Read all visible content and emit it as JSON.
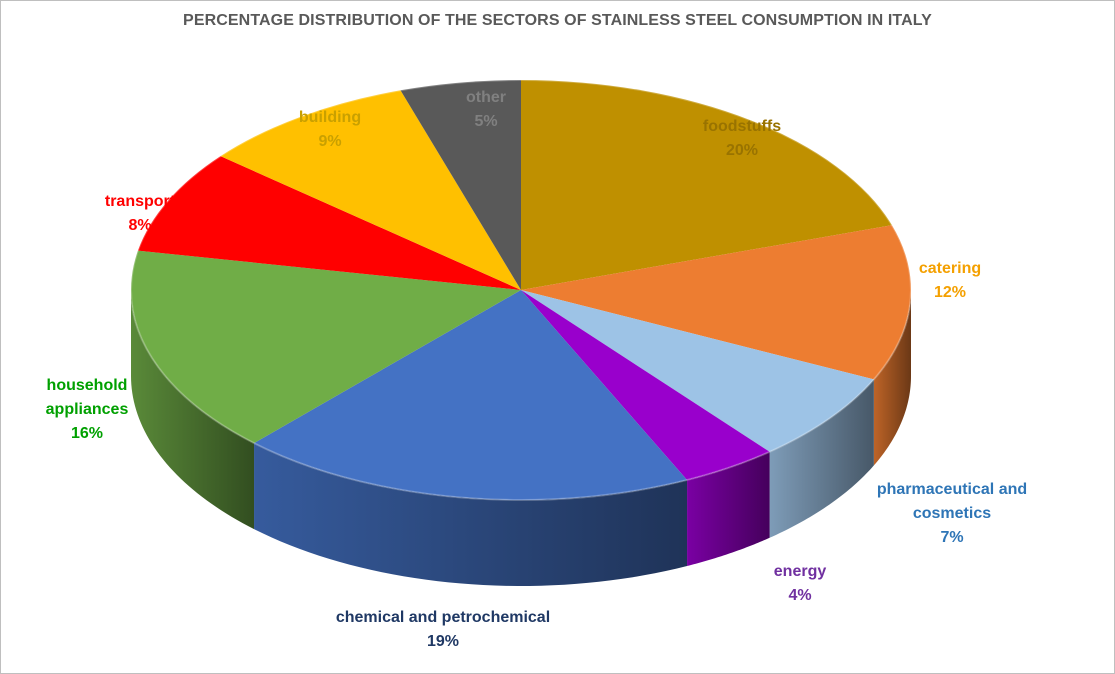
{
  "chart_data": {
    "type": "pie",
    "title": "PERCENTAGE DISTRIBUTION OF THE SECTORS OF STAINLESS STEEL CONSUMPTION IN ITALY",
    "slices": [
      {
        "name": "foodstuffs",
        "value": 20,
        "label_lines": [
          "foodstuffs",
          "20%"
        ],
        "color": "#BF9000",
        "label_color": "#997300"
      },
      {
        "name": "catering",
        "value": 12,
        "label_lines": [
          "catering",
          "12%"
        ],
        "color": "#ED7D31",
        "label_color": "#F4A000"
      },
      {
        "name": "pharmaceutical and cosmetics",
        "value": 7,
        "label_lines": [
          "pharmaceutical and",
          "cosmetics",
          "7%"
        ],
        "color": "#9DC3E6",
        "label_color": "#2E75B6"
      },
      {
        "name": "energy",
        "value": 4,
        "label_lines": [
          "energy",
          "4%"
        ],
        "color": "#9900CC",
        "label_color": "#7030A0"
      },
      {
        "name": "chemical and petrochemical",
        "value": 19,
        "label_lines": [
          "chemical and petrochemical",
          "19%"
        ],
        "color": "#4472C4",
        "label_color": "#1F3864"
      },
      {
        "name": "household appliances",
        "value": 16,
        "label_lines": [
          "household",
          "appliances",
          "16%"
        ],
        "color": "#70AD47",
        "label_color": "#00A000"
      },
      {
        "name": "transport",
        "value": 8,
        "label_lines": [
          "transport",
          "8%"
        ],
        "color": "#FF0000",
        "label_color": "#FF0000"
      },
      {
        "name": "building",
        "value": 9,
        "label_lines": [
          "building",
          "9%"
        ],
        "color": "#FFC000",
        "label_color": "#C9A000"
      },
      {
        "name": "other",
        "value": 5,
        "label_lines": [
          "other",
          "5%"
        ],
        "color": "#595959",
        "label_color": "#808080"
      }
    ],
    "style": "3d-pie",
    "legend": "none"
  }
}
